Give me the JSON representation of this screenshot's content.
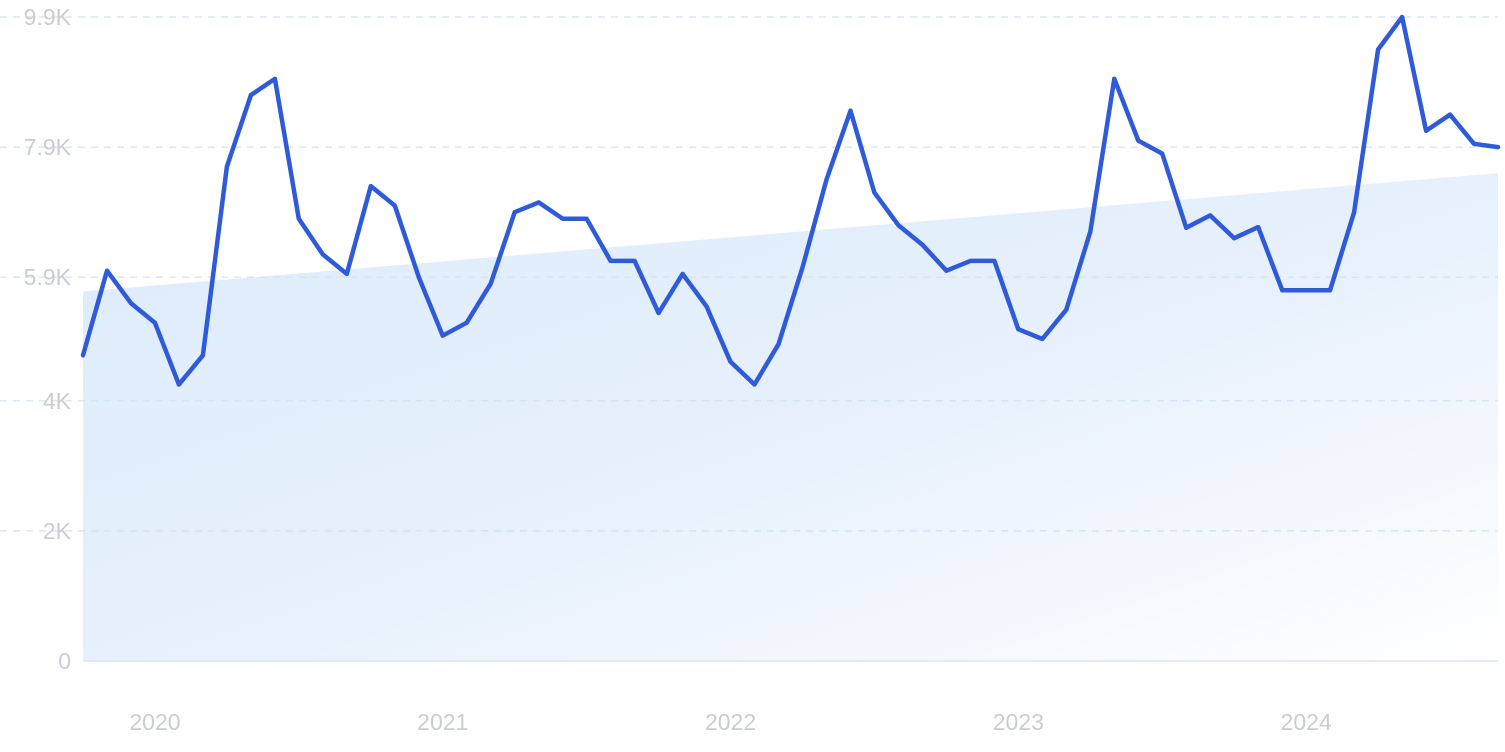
{
  "chart_data": {
    "type": "line",
    "title": "",
    "xlabel": "",
    "ylabel": "",
    "ylim": [
      0,
      9900
    ],
    "xlim": [
      "2019-10",
      "2024-09"
    ],
    "grid": true,
    "y_ticks": [
      {
        "value": 0,
        "label": "0"
      },
      {
        "value": 2000,
        "label": "2K"
      },
      {
        "value": 4000,
        "label": "4K"
      },
      {
        "value": 5900,
        "label": "5.9K"
      },
      {
        "value": 7900,
        "label": "7.9K"
      },
      {
        "value": 9900,
        "label": "9.9K"
      }
    ],
    "x_ticks": [
      {
        "value": "2020-01",
        "label": "2020"
      },
      {
        "value": "2021-01",
        "label": "2021"
      },
      {
        "value": "2022-01",
        "label": "2022"
      },
      {
        "value": "2023-01",
        "label": "2023"
      },
      {
        "value": "2024-01",
        "label": "2024"
      }
    ],
    "series": [
      {
        "color": "#2f5bdb",
        "x": [
          "2019-10",
          "2019-11",
          "2019-12",
          "2020-01",
          "2020-02",
          "2020-03",
          "2020-04",
          "2020-05",
          "2020-06",
          "2020-07",
          "2020-08",
          "2020-09",
          "2020-10",
          "2020-11",
          "2020-12",
          "2021-01",
          "2021-02",
          "2021-03",
          "2021-04",
          "2021-05",
          "2021-06",
          "2021-07",
          "2021-08",
          "2021-09",
          "2021-10",
          "2021-11",
          "2021-12",
          "2022-01",
          "2022-02",
          "2022-03",
          "2022-04",
          "2022-05",
          "2022-06",
          "2022-07",
          "2022-08",
          "2022-09",
          "2022-10",
          "2022-11",
          "2022-12",
          "2023-01",
          "2023-02",
          "2023-03",
          "2023-04",
          "2023-05",
          "2023-06",
          "2023-07",
          "2023-08",
          "2023-09",
          "2023-10",
          "2023-11",
          "2023-12",
          "2024-01",
          "2024-02",
          "2024-03",
          "2024-04",
          "2024-05",
          "2024-06",
          "2024-07",
          "2024-08",
          "2024-09"
        ],
        "values": [
          4700,
          6000,
          5500,
          5200,
          4250,
          4700,
          7600,
          8700,
          8950,
          6800,
          6250,
          5950,
          7300,
          7000,
          5900,
          5000,
          5200,
          5800,
          6900,
          7050,
          6800,
          6800,
          6150,
          6150,
          5350,
          5950,
          5450,
          4600,
          4250,
          4870,
          6050,
          7400,
          8460,
          7200,
          6700,
          6400,
          6000,
          6150,
          6150,
          5100,
          4950,
          5400,
          6600,
          8950,
          8000,
          7800,
          6660,
          6850,
          6500,
          6670,
          5700,
          5700,
          5700,
          6900,
          9400,
          9900,
          8150,
          8400,
          7950,
          7900
        ]
      }
    ],
    "trend": {
      "color": "#dcebfb",
      "from": {
        "x": "2019-10",
        "y": 5680
      },
      "to": {
        "x": "2024-09",
        "y": 7500
      }
    }
  }
}
